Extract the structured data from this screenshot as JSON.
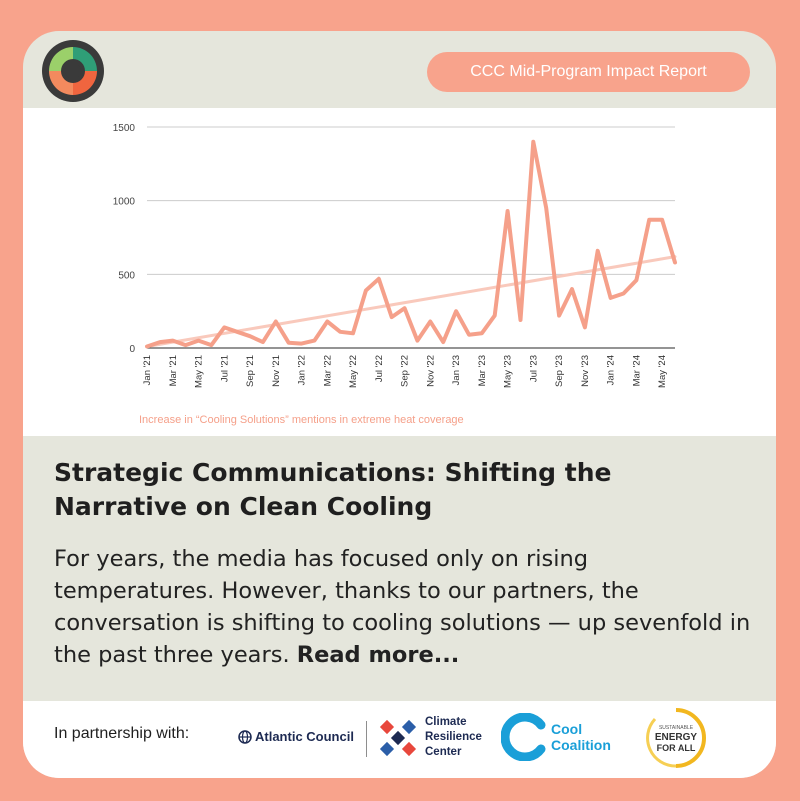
{
  "header": {
    "report_title": "CCC Mid-Program Impact Report"
  },
  "chart_data": {
    "type": "line",
    "x": [
      "Jan '21",
      "Feb '21",
      "Mar '21",
      "Apr '21",
      "May '21",
      "Jun '21",
      "Jul '21",
      "Aug '21",
      "Sep '21",
      "Oct '21",
      "Nov '21",
      "Dec '21",
      "Jan '22",
      "Feb '22",
      "Mar '22",
      "Apr '22",
      "May '22",
      "Jun '22",
      "Jul '22",
      "Aug '22",
      "Sep '22",
      "Oct '22",
      "Nov '22",
      "Dec '22",
      "Jan '23",
      "Feb '23",
      "Mar '23",
      "Apr '23",
      "May '23",
      "Jun '23",
      "Jul '23",
      "Aug '23",
      "Sep '23",
      "Oct '23",
      "Nov '23",
      "Dec '23",
      "Jan '24",
      "Feb '24",
      "Mar '24",
      "Apr '24",
      "May '24",
      "Jun '24"
    ],
    "tick_labels": [
      "Jan '21",
      "Mar '21",
      "May '21",
      "Jul '21",
      "Sep '21",
      "Nov '21",
      "Jan '22",
      "Mar '22",
      "May '22",
      "Jul '22",
      "Sep '22",
      "Nov '22",
      "Jan '23",
      "Mar '23",
      "May '23",
      "Jul '23",
      "Sep '23",
      "Nov '23",
      "Jan '24",
      "Mar '24",
      "May '24"
    ],
    "series": [
      {
        "values": [
          10,
          40,
          50,
          20,
          50,
          20,
          140,
          110,
          80,
          40,
          180,
          35,
          30,
          50,
          180,
          110,
          100,
          390,
          470,
          210,
          270,
          50,
          180,
          40,
          250,
          90,
          100,
          220,
          930,
          190,
          1400,
          950,
          220,
          400,
          140,
          660,
          340,
          370,
          460,
          870,
          870,
          580
        ],
        "color": "#f5a08a"
      }
    ],
    "trendline": {
      "start": 10,
      "end": 620,
      "color": "#f9c9bc"
    },
    "ylim": [
      0,
      1500
    ],
    "yticks": [
      0,
      500,
      1000,
      1500
    ],
    "caption": "Increase in “Cooling Solutions” mentions in extreme heat coverage",
    "grid": true
  },
  "article": {
    "headline": "Strategic Communications: Shifting the Narrative on Clean Cooling",
    "body": "For years, the media has focused only on rising temperatures. However, thanks to our partners, the conversation is shifting to cooling solutions — up sevenfold in the past three years. ",
    "read_more": "Read more..."
  },
  "footer": {
    "partner_label": "In partnership with:",
    "partners": {
      "atlantic_council": "Atlantic Council",
      "crc_line1": "Climate",
      "crc_line2": "Resilience",
      "crc_line3": "Center",
      "cool_line1": "Cool",
      "cool_line2": "Coalition",
      "se_line1": "SUSTAINABLE",
      "se_line2": "ENERGY",
      "se_line3": "FOR ALL"
    }
  },
  "colors": {
    "accent": "#f8a38c",
    "panel": "#e5e6dc"
  }
}
